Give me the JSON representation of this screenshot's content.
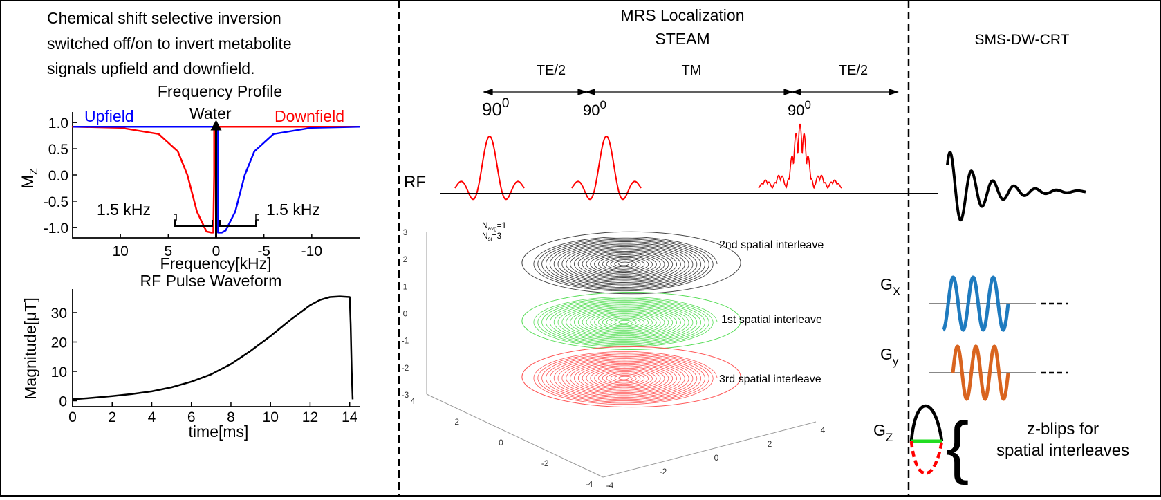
{
  "colors": {
    "upfield": "#0000ff",
    "downfield": "#ff0000",
    "rf": "#ff0000",
    "gx": "#1f7bbf",
    "gy": "#d9641f",
    "gz_top": "#000000",
    "gz_mid": "#22dd22",
    "gz_bottom": "#ff0000",
    "interleave_2nd": "#444444",
    "interleave_1st": "#55dd55",
    "interleave_3rd": "#ff5555"
  },
  "left_panel": {
    "description_lines": [
      "Chemical shift selective inversion",
      "switched off/on to invert metabolite",
      "signals upfield and downfield."
    ],
    "freq_profile": {
      "title": "Frequency Profile",
      "ylabel": "M",
      "ylabel_sub": "Z",
      "xlabel": "Frequency[kHz]",
      "label_upfield": "Upfield",
      "label_downfield": "Downfield",
      "label_water": "Water",
      "bw_left": "1.5 kHz",
      "bw_right": "1.5 kHz",
      "yticks": [
        "1.0",
        "0.5",
        "0.0",
        "-0.5",
        "-1.0"
      ],
      "xticks": [
        "10",
        "5",
        "0",
        "-5",
        "-10"
      ]
    },
    "rf_waveform": {
      "title": "RF Pulse Waveform",
      "ylabel": "Magnitude[μT]",
      "xlabel": "time[ms]",
      "yticks": [
        "30",
        "20",
        "10",
        "0"
      ],
      "xticks": [
        "0",
        "2",
        "4",
        "6",
        "8",
        "10",
        "12",
        "14"
      ]
    }
  },
  "chart_data": [
    {
      "type": "line",
      "title": "Frequency Profile",
      "xlabel": "Frequency[kHz]",
      "ylabel": "Mz",
      "xlim": [
        15,
        -15
      ],
      "ylim": [
        -1.2,
        1.2
      ],
      "series": [
        {
          "name": "Downfield",
          "x": [
            15,
            10,
            6,
            4,
            3,
            2,
            1,
            0.5,
            0.3,
            0.2,
            0.2,
            0.3,
            0.6,
            1,
            5,
            10,
            15,
            -5,
            -10,
            -15
          ],
          "y": [
            0.92,
            0.9,
            0.78,
            0.45,
            0.0,
            -0.7,
            -1.08,
            -1.1,
            -1.1,
            0.0,
            0.9,
            0.92,
            0.92,
            0.92,
            0.92,
            0.92,
            0.92,
            0.92,
            0.92,
            0.92
          ]
        },
        {
          "name": "Upfield",
          "x": [
            15,
            10,
            5,
            0,
            -0.2,
            -0.2,
            -0.4,
            -0.6,
            -1,
            -2,
            -3,
            -4,
            -6,
            -10,
            -15
          ],
          "y": [
            0.92,
            0.92,
            0.92,
            0.92,
            0.92,
            -1.1,
            -1.1,
            -1.1,
            -1.06,
            -0.7,
            0.0,
            0.45,
            0.78,
            0.9,
            0.92
          ]
        }
      ]
    },
    {
      "type": "line",
      "title": "RF Pulse Waveform",
      "xlabel": "time[ms]",
      "ylabel": "Magnitude[μT]",
      "xlim": [
        0,
        14.5
      ],
      "ylim": [
        -2,
        38
      ],
      "series": [
        {
          "name": "RF pulse",
          "x": [
            0,
            1,
            2,
            3,
            4,
            5,
            6,
            7,
            8,
            9,
            10,
            11,
            12,
            12.5,
            13,
            13.5,
            14.0,
            14.05,
            14.1,
            14.15
          ],
          "y": [
            0.5,
            1.0,
            1.6,
            2.3,
            3.2,
            4.6,
            6.5,
            9.0,
            12.5,
            17.0,
            22.0,
            27.5,
            32.5,
            34.3,
            35.3,
            35.5,
            35.3,
            26.0,
            10.0,
            0.5
          ]
        }
      ]
    }
  ],
  "middle_panel": {
    "title_line1": "MRS Localization",
    "title_line2": "STEAM",
    "interval_1": "TE/2",
    "interval_2": "TM",
    "interval_3": "TE/2",
    "flip_value": "90",
    "flip_sup": "0",
    "rf_label": "RF",
    "spiral_plot": {
      "navg_label": "N",
      "navg_sub": "avg",
      "navg_value": "=1",
      "nsi_label": "N",
      "nsi_sub": "si",
      "nsi_value": "=3",
      "zticks": [
        "3",
        "2",
        "1",
        "0",
        "-1",
        "-2",
        "-3"
      ],
      "xticks": [
        "4",
        "2",
        "0",
        "-2",
        "-4"
      ],
      "yticks": [
        "-4",
        "-2",
        "0",
        "2",
        "4"
      ],
      "interleave_2nd": "2nd spatial interleave",
      "interleave_1st": "1st spatial interleave",
      "interleave_3rd": "3rd spatial interleave"
    }
  },
  "right_panel": {
    "title": "SMS-DW-CRT",
    "gx_label": "G",
    "gx_sub": "X",
    "gy_label": "G",
    "gy_sub": "y",
    "gz_label": "G",
    "gz_sub": "Z",
    "blips_line1": "z-blips for",
    "blips_line2": "spatial interleaves"
  }
}
